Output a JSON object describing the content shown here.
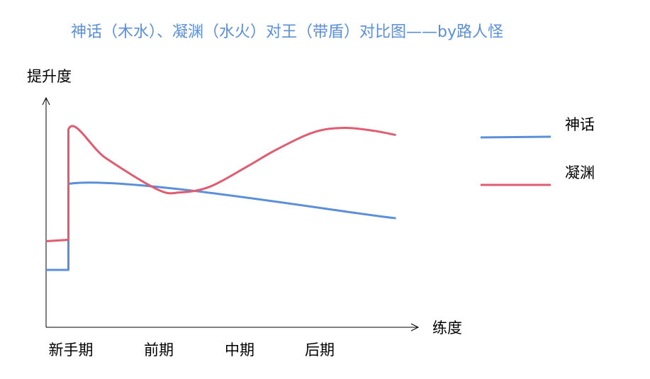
{
  "chart_data": {
    "type": "line",
    "title": "神话（木水）、凝渊（水火）对王（带盾）对比图——by路人怪",
    "ylabel": "提升度",
    "xlabel": "练度",
    "categories": [
      "新手期",
      "前期",
      "中期",
      "后期"
    ],
    "legend_position": "right",
    "grid": false,
    "series": [
      {
        "name": "神话",
        "color": "#5b8fd9",
        "points": [
          [
            0.0,
            2.0
          ],
          [
            0.3,
            2.0
          ],
          [
            0.3,
            5.0
          ],
          [
            4.7,
            3.8
          ]
        ]
      },
      {
        "name": "凝渊",
        "color": "#e05c70",
        "points": [
          [
            0.0,
            3.0
          ],
          [
            0.3,
            3.05
          ],
          [
            0.3,
            6.9
          ],
          [
            0.8,
            5.9
          ],
          [
            1.5,
            4.8
          ],
          [
            1.8,
            4.7
          ],
          [
            2.2,
            4.9
          ],
          [
            2.7,
            5.6
          ],
          [
            3.1,
            6.2
          ],
          [
            3.6,
            6.8
          ],
          [
            4.0,
            6.95
          ],
          [
            4.4,
            6.85
          ],
          [
            4.7,
            6.7
          ]
        ]
      }
    ],
    "xlim": [
      0,
      5
    ],
    "ylim": [
      0,
      8
    ]
  }
}
